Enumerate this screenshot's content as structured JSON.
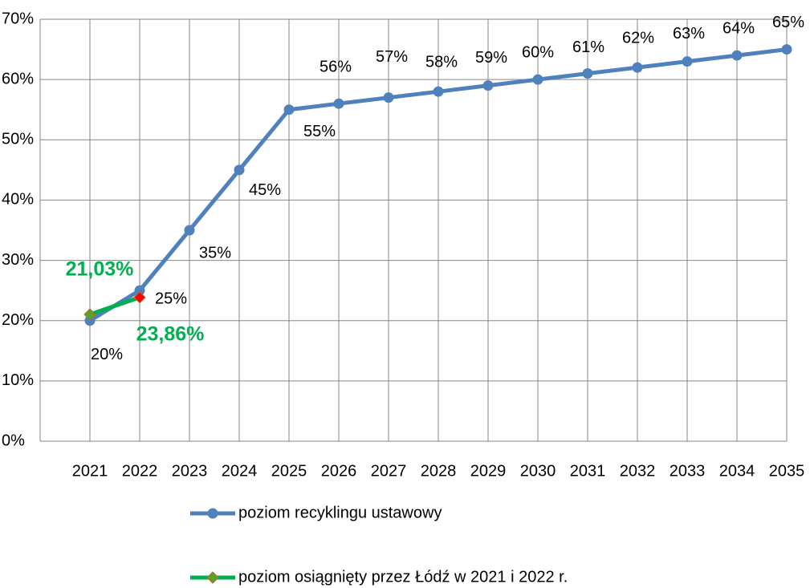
{
  "chart_data": {
    "type": "line",
    "categories": [
      "2021",
      "2022",
      "2023",
      "2024",
      "2025",
      "2026",
      "2027",
      "2028",
      "2029",
      "2030",
      "2031",
      "2032",
      "2033",
      "2034",
      "2035"
    ],
    "series": [
      {
        "name": "poziom recyklingu ustawowy",
        "color": "#4f81bd",
        "values": [
          20,
          25,
          35,
          45,
          55,
          56,
          57,
          58,
          59,
          60,
          61,
          62,
          63,
          64,
          65
        ],
        "value_labels": [
          "20%",
          "25%",
          "35%",
          "45%",
          "55%",
          "56%",
          "57%",
          "58%",
          "59%",
          "60%",
          "61%",
          "62%",
          "63%",
          "64%",
          "65%"
        ]
      },
      {
        "name": "poziom osiągnięty przez Łódź w 2021 i 2022 r.",
        "color": "#00b050",
        "marker_colors": [
          "#5aa02c",
          "#ff0000",
          null,
          null,
          null,
          null,
          null,
          null,
          null,
          null,
          null,
          null,
          null,
          null,
          null
        ],
        "values": [
          21.03,
          23.86,
          null,
          null,
          null,
          null,
          null,
          null,
          null,
          null,
          null,
          null,
          null,
          null,
          null
        ],
        "value_labels": [
          "21,03%",
          "23,86%",
          null,
          null,
          null,
          null,
          null,
          null,
          null,
          null,
          null,
          null,
          null,
          null,
          null
        ]
      }
    ],
    "ylim": [
      0,
      70
    ],
    "yticks": [
      {
        "value": 0,
        "label": "0%"
      },
      {
        "value": 10,
        "label": "10%"
      },
      {
        "value": 20,
        "label": "20%"
      },
      {
        "value": 30,
        "label": "30%"
      },
      {
        "value": 40,
        "label": "40%"
      },
      {
        "value": 50,
        "label": "50%"
      },
      {
        "value": 60,
        "label": "60%"
      },
      {
        "value": 70,
        "label": "70%"
      }
    ],
    "grid": true,
    "legend": "bottom"
  }
}
